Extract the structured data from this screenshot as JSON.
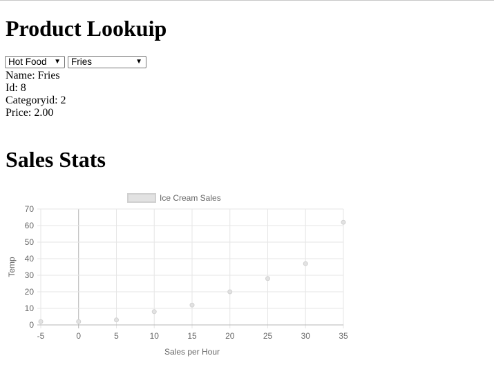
{
  "lookup": {
    "title": "Product Lookuip",
    "category_select": {
      "selected": "Hot Food"
    },
    "product_select": {
      "selected": "Fries"
    },
    "details": [
      {
        "text": "Name: Fries"
      },
      {
        "text": "Id: 8"
      },
      {
        "text": "Categoryid: 2"
      },
      {
        "text": "Price: 2.00"
      }
    ]
  },
  "stats": {
    "title": "Sales Stats"
  },
  "chart_data": {
    "type": "scatter",
    "series": [
      {
        "name": "Ice Cream Sales",
        "x": [
          -5,
          0,
          5,
          10,
          15,
          20,
          25,
          30,
          35
        ],
        "y": [
          2,
          2,
          3,
          8,
          12,
          20,
          28,
          37,
          62
        ]
      }
    ],
    "xlabel": "Sales per Hour",
    "ylabel": "Temp",
    "xlim": [
      -5,
      35
    ],
    "ylim": [
      0,
      70
    ],
    "xticks": [
      -5,
      0,
      5,
      10,
      15,
      20,
      25,
      30,
      35
    ],
    "yticks": [
      0,
      10,
      20,
      30,
      40,
      50,
      60,
      70
    ],
    "grid": true,
    "legend": "top",
    "colors": {
      "point_fill": "#e2e2e2",
      "point_stroke": "#d0d0d0",
      "grid": "#e6e6e6",
      "zero_line": "#b4b4b4",
      "text": "#666666"
    }
  }
}
